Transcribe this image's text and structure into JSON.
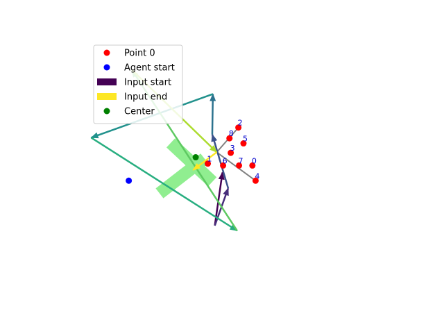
{
  "chart_data": {
    "type": "scatter",
    "axes_visible": false,
    "xlim": [
      -2.2,
      3.2
    ],
    "ylim": [
      -2.2,
      1.85
    ],
    "legend": {
      "placement": "top-left",
      "entries": [
        {
          "label": "Point 0",
          "kind": "dot",
          "color": "#ff0000"
        },
        {
          "label": "Agent start",
          "kind": "dot",
          "color": "#0000ff"
        },
        {
          "label": "Input start",
          "kind": "patch",
          "color": "#440154"
        },
        {
          "label": "Input end",
          "kind": "patch",
          "color": "#fde725"
        },
        {
          "label": "Center",
          "kind": "dot",
          "color": "#008000"
        }
      ]
    },
    "center": {
      "x": 0.0,
      "y": 0.0,
      "color": "#008000"
    },
    "agent_start": {
      "x": -1.05,
      "y": -0.37,
      "color": "#0000ff"
    },
    "points": [
      {
        "label": "0",
        "x": 0.89,
        "y": -0.13
      },
      {
        "label": "1",
        "x": 0.19,
        "y": -0.1
      },
      {
        "label": "2",
        "x": 0.67,
        "y": 0.47
      },
      {
        "label": "3",
        "x": 0.55,
        "y": 0.07
      },
      {
        "label": "4",
        "x": 0.94,
        "y": -0.37
      },
      {
        "label": "5",
        "x": 0.75,
        "y": 0.22
      },
      {
        "label": "6",
        "x": 0.43,
        "y": -0.13
      },
      {
        "label": "7",
        "x": 0.68,
        "y": -0.13
      },
      {
        "label": "8",
        "x": 0.53,
        "y": 0.3
      }
    ],
    "point_color": "#ff0000",
    "point_label_color": "#0000cc",
    "links_color": "#808080",
    "links": [
      [
        [
          0.33,
          0.08
        ],
        [
          0.67,
          0.47
        ]
      ],
      [
        [
          0.33,
          0.08
        ],
        [
          0.94,
          -0.37
        ]
      ]
    ],
    "shape": {
      "color": "#90ee90",
      "arms": [
        [
          [
            -0.32,
            0.16
          ],
          [
            0.19,
            -0.32
          ]
        ],
        [
          [
            -0.49,
            -0.51
          ],
          [
            0.06,
            -0.08
          ]
        ]
      ]
    },
    "arrows": [
      {
        "from": [
          0.3,
          -1.08
        ],
        "to": [
          0.42,
          -0.24
        ],
        "color": "#440154"
      },
      {
        "from": [
          0.3,
          -1.08
        ],
        "to": [
          0.51,
          -0.49
        ],
        "color": "#472d7b"
      },
      {
        "from": [
          0.51,
          -0.49
        ],
        "to": [
          0.26,
          0.36
        ],
        "color": "#3b528b"
      },
      {
        "from": [
          0.26,
          0.36
        ],
        "to": [
          0.27,
          1.0
        ],
        "color": "#2c728e"
      },
      {
        "from": [
          0.27,
          1.0
        ],
        "to": [
          -1.64,
          0.31
        ],
        "color": "#21918c"
      },
      {
        "from": [
          -1.64,
          0.31
        ],
        "to": [
          0.65,
          -1.16
        ],
        "color": "#28ae80"
      },
      {
        "from": [
          0.65,
          -1.16
        ],
        "to": [
          -1.0,
          1.38
        ],
        "color": "#5ec962"
      },
      {
        "from": [
          -1.0,
          1.38
        ],
        "to": [
          0.33,
          0.08
        ],
        "color": "#addc30"
      },
      {
        "from": [
          0.33,
          0.08
        ],
        "to": [
          -0.04,
          -0.2
        ],
        "color": "#fde725"
      }
    ]
  }
}
